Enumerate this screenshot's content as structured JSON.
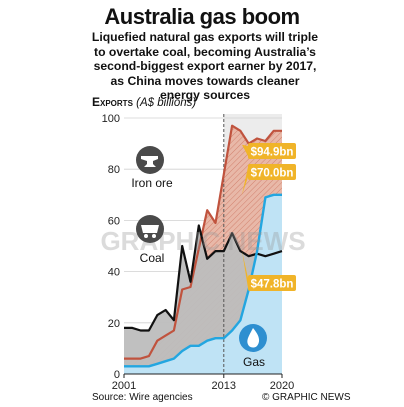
{
  "title": "Australia gas boom",
  "subtitle": "Liquefied natural gas exports will triple to overtake coal, becoming Australia’s second-biggest export earner by 2017, as China moves towards cleaner energy sources",
  "exports_label": "Exports",
  "units_label": "(A$ billions)",
  "source": "Source: Wire agencies",
  "credit": "© GRAPHIC NEWS",
  "watermark": "GRAPHIC NEWS",
  "colors": {
    "iron_ore": "#c0533e",
    "iron_ore_fill": "#e8b8a8",
    "coal": "#111111",
    "coal_fill": "#bdbdbd",
    "gas": "#23a6e0",
    "gas_fill": "#bfe3f5",
    "callout": "#f0b429",
    "forecast_fill": "#ececec"
  },
  "chart_data": {
    "type": "area",
    "x_ticks": [
      "2001",
      "2013",
      "2020"
    ],
    "xlim": [
      2001,
      2020
    ],
    "ylim": [
      0,
      100
    ],
    "y_ticks": [
      "0",
      "20",
      "40",
      "60",
      "80",
      "100"
    ],
    "forecast_from": 2013,
    "series": [
      {
        "name": "Iron ore",
        "key": "iron_ore",
        "x": [
          2001,
          2002,
          2003,
          2004,
          2005,
          2006,
          2007,
          2008,
          2009,
          2010,
          2011,
          2012,
          2013,
          2014,
          2015,
          2016,
          2017,
          2018,
          2019,
          2020
        ],
        "values": [
          6,
          6,
          6,
          7,
          13,
          15,
          17,
          33,
          34,
          49,
          64,
          59,
          78,
          97,
          95,
          90,
          92,
          91,
          95,
          95
        ],
        "end_label": "$94.9bn"
      },
      {
        "name": "Coal",
        "key": "coal",
        "x": [
          2001,
          2002,
          2003,
          2004,
          2005,
          2006,
          2007,
          2008,
          2009,
          2010,
          2011,
          2012,
          2013,
          2014,
          2015,
          2016,
          2017,
          2018,
          2019,
          2020
        ],
        "values": [
          18,
          18,
          17,
          17,
          23,
          25,
          21,
          50,
          36,
          58,
          45,
          48,
          48,
          55,
          48,
          46,
          47,
          46,
          47,
          48
        ],
        "end_label": "$47.8bn"
      },
      {
        "name": "Gas",
        "key": "gas",
        "x": [
          2001,
          2002,
          2003,
          2004,
          2005,
          2006,
          2007,
          2008,
          2009,
          2010,
          2011,
          2012,
          2013,
          2014,
          2015,
          2016,
          2017,
          2018,
          2019,
          2020
        ],
        "values": [
          3,
          3,
          3,
          3,
          4,
          5,
          6,
          9,
          11,
          11,
          13,
          14,
          14,
          17,
          21,
          33,
          48,
          69,
          70,
          70
        ],
        "end_label": "$70.0bn"
      }
    ]
  }
}
